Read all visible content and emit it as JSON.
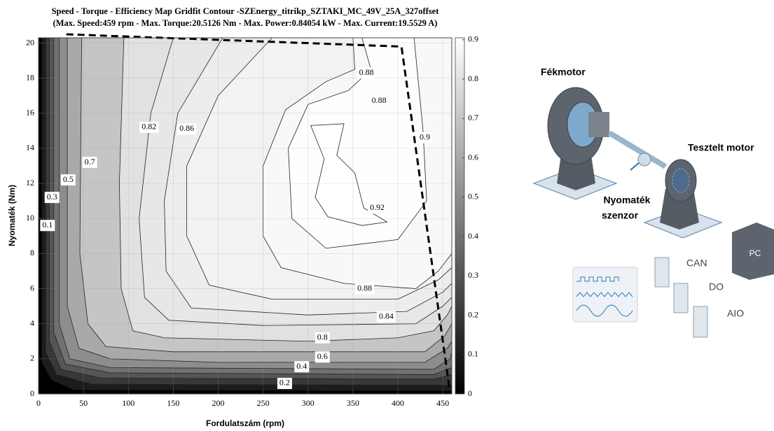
{
  "chart_data": {
    "type": "contour",
    "title": "Speed - Torque - Efficiency Map Gridfit Contour -SZEnergy_titrikp_SZTAKI_MC_49V_25A_327offset",
    "subtitle": "(Max. Speed:459 rpm - Max. Torque:20.5126 Nm - Max. Power:0.84054 kW - Max. Current:19.5529 A)",
    "xlabel": "Fordulatszám (rpm)",
    "ylabel": "Nyomaték (Nm)",
    "xlim": [
      0,
      460
    ],
    "ylim": [
      0,
      20.3
    ],
    "xticks": [
      0,
      50,
      100,
      150,
      200,
      250,
      300,
      350,
      400,
      450
    ],
    "yticks": [
      0,
      2,
      4,
      6,
      8,
      10,
      12,
      14,
      16,
      18,
      20
    ],
    "grid": true,
    "colormap": "gray",
    "clim": [
      0,
      0.905
    ],
    "cticks": [
      0,
      0.1,
      0.2,
      0.3,
      0.4,
      0.5,
      0.6,
      0.7,
      0.8,
      0.9
    ],
    "levels": [
      {
        "level": 0.1,
        "x": [
          4,
          4,
          15,
          40,
          460,
          460
        ],
        "y": [
          20.3,
          1.8,
          0.8,
          0.25,
          0.2,
          20.3
        ]
      },
      {
        "level": 0.2,
        "x": [
          8,
          8,
          20,
          60,
          460,
          460
        ],
        "y": [
          20.3,
          2.4,
          1.1,
          0.55,
          0.5,
          20.3
        ]
      },
      {
        "level": 0.3,
        "x": [
          12,
          12,
          25,
          70,
          440,
          460,
          460
        ],
        "y": [
          20.3,
          3,
          1.4,
          0.9,
          0.85,
          1.1,
          20.3
        ]
      },
      {
        "level": 0.4,
        "x": [
          17,
          17,
          30,
          80,
          440,
          460,
          460
        ],
        "y": [
          20.3,
          3.5,
          1.7,
          1.2,
          1.1,
          1.5,
          20.3
        ]
      },
      {
        "level": 0.5,
        "x": [
          23,
          23,
          35,
          80,
          440,
          458,
          460,
          460
        ],
        "y": [
          20.3,
          4,
          2,
          1.5,
          1.4,
          2,
          2.4,
          20.3
        ]
      },
      {
        "level": 0.6,
        "x": [
          32,
          32,
          45,
          80,
          200,
          430,
          455,
          460,
          460
        ],
        "y": [
          20.3,
          5,
          2.6,
          2,
          1.8,
          1.8,
          2.6,
          3,
          20.3
        ]
      },
      {
        "level": 0.7,
        "x": [
          48,
          46,
          55,
          75,
          150,
          430,
          452,
          460,
          460
        ],
        "y": [
          20.3,
          8,
          4,
          2.7,
          2.4,
          2.4,
          3.3,
          4,
          20.3
        ]
      },
      {
        "level": 0.8,
        "x": [
          95,
          90,
          92,
          105,
          140,
          300,
          400,
          440,
          455,
          460,
          460
        ],
        "y": [
          20.3,
          12,
          6,
          3.6,
          3.2,
          3,
          3.2,
          3.6,
          4.5,
          5,
          20.3
        ]
      },
      {
        "level": 0.82,
        "x": [
          150,
          125,
          112,
          118,
          145,
          250,
          420,
          450,
          460,
          460
        ],
        "y": [
          20.3,
          16,
          10,
          5.5,
          4.2,
          3.9,
          4,
          5,
          5.5,
          20.3
        ]
      },
      {
        "level": 0.84,
        "x": [
          205,
          155,
          140,
          142,
          170,
          300,
          410,
          450,
          460,
          460
        ],
        "y": [
          20.3,
          16,
          11,
          7,
          4.9,
          4.5,
          4.7,
          5.8,
          6.3,
          20.3
        ]
      },
      {
        "level": 0.86,
        "x": [
          260,
          200,
          165,
          165,
          190,
          260,
          400,
          445,
          460,
          460
        ],
        "y": [
          20.3,
          17,
          13,
          9,
          6.2,
          5.4,
          5.4,
          6.5,
          7.2,
          20.3
        ]
      },
      {
        "level": 0.88,
        "x": [
          350,
          352,
          320,
          275,
          250,
          250,
          270,
          340,
          420,
          445,
          460,
          460
        ],
        "y": [
          20.3,
          18.5,
          17.8,
          16.2,
          13,
          9,
          7.2,
          6.3,
          6,
          7,
          8,
          20.3
        ]
      },
      {
        "level": 0.9,
        "x": [
          360,
          370,
          345,
          300,
          278,
          282,
          320,
          400,
          432,
          428,
          418
        ],
        "y": [
          20.3,
          18.5,
          17.3,
          16.5,
          14,
          10,
          8.3,
          8.8,
          11,
          15,
          20.3
        ]
      },
      {
        "level": 0.92,
        "x": [
          303,
          340,
          332,
          352,
          362,
          388,
          360,
          322,
          308,
          318
        ],
        "y": [
          15.3,
          15.4,
          13.6,
          12.6,
          10.6,
          9.8,
          9.6,
          10.1,
          11.2,
          13.4
        ]
      }
    ],
    "contour_labels": [
      {
        "value": 0.1,
        "x": 10,
        "y": 9.6
      },
      {
        "value": 0.3,
        "x": 15,
        "y": 11.2
      },
      {
        "value": 0.5,
        "x": 33,
        "y": 12.2
      },
      {
        "value": 0.7,
        "x": 57,
        "y": 13.2
      },
      {
        "value": 0.82,
        "x": 123,
        "y": 15.2
      },
      {
        "value": 0.86,
        "x": 165,
        "y": 15.1
      },
      {
        "value": 0.88,
        "x": 365,
        "y": 18.3
      },
      {
        "value": 0.88,
        "x": 379,
        "y": 16.7
      },
      {
        "value": 0.9,
        "x": 430,
        "y": 14.6
      },
      {
        "value": 0.92,
        "x": 377,
        "y": 10.6
      },
      {
        "value": 0.88,
        "x": 363,
        "y": 6.0
      },
      {
        "value": 0.84,
        "x": 387,
        "y": 4.4
      },
      {
        "value": 0.8,
        "x": 316,
        "y": 3.2
      },
      {
        "value": 0.6,
        "x": 316,
        "y": 2.1
      },
      {
        "value": 0.4,
        "x": 293,
        "y": 1.55
      },
      {
        "value": 0.2,
        "x": 274,
        "y": 0.6
      }
    ],
    "envelope": {
      "x": [
        31,
        404,
        458
      ],
      "y": [
        20.5,
        19.8,
        0.1
      ]
    }
  },
  "diagram": {
    "brake_motor": "Fékmotor",
    "tested_motor": "Tesztelt motor",
    "sensor": [
      "Nyomaték",
      "szenzor"
    ],
    "pc": "PC",
    "can": "CAN",
    "do": "DO",
    "aio": "AIO"
  }
}
